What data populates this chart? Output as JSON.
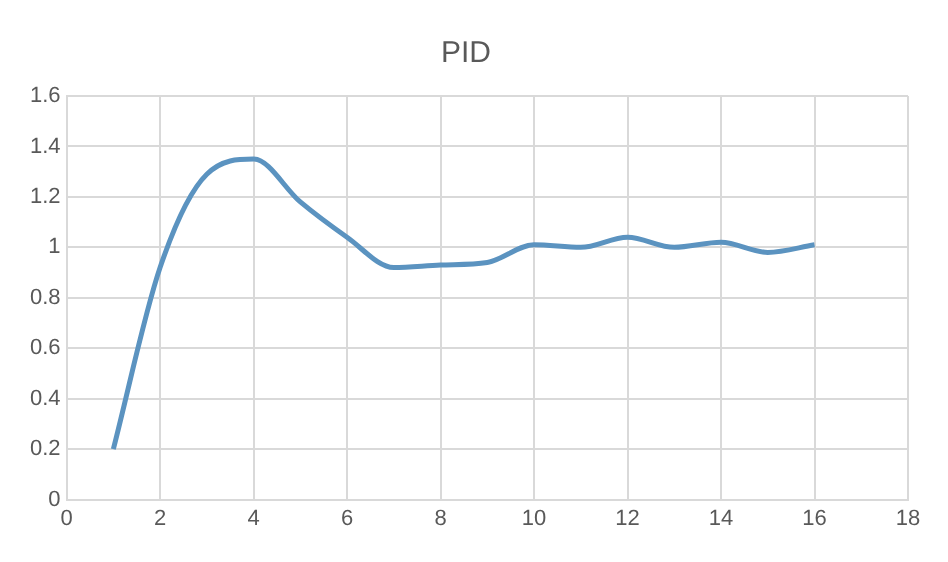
{
  "chart_data": {
    "type": "line",
    "title": "PID",
    "x": [
      1,
      2,
      3,
      4,
      5,
      6,
      7,
      8,
      9,
      10,
      11,
      12,
      13,
      14,
      15,
      16
    ],
    "series": [
      {
        "color": "#5b93c0",
        "values": [
          0.2,
          0.92,
          1.29,
          1.35,
          1.18,
          1.04,
          0.92,
          0.93,
          0.94,
          1.01,
          1.0,
          1.04,
          1.0,
          1.02,
          0.98,
          1.01
        ]
      }
    ],
    "xlim": [
      0,
      18
    ],
    "xticks": [
      0,
      2,
      4,
      6,
      8,
      10,
      12,
      14,
      16,
      18
    ],
    "ylim": [
      0,
      1.6
    ],
    "yticks": [
      0,
      0.2,
      0.4,
      0.6,
      0.8,
      1,
      1.2,
      1.4,
      1.6
    ],
    "grid": true,
    "marker": "none",
    "line_style": "solid"
  }
}
